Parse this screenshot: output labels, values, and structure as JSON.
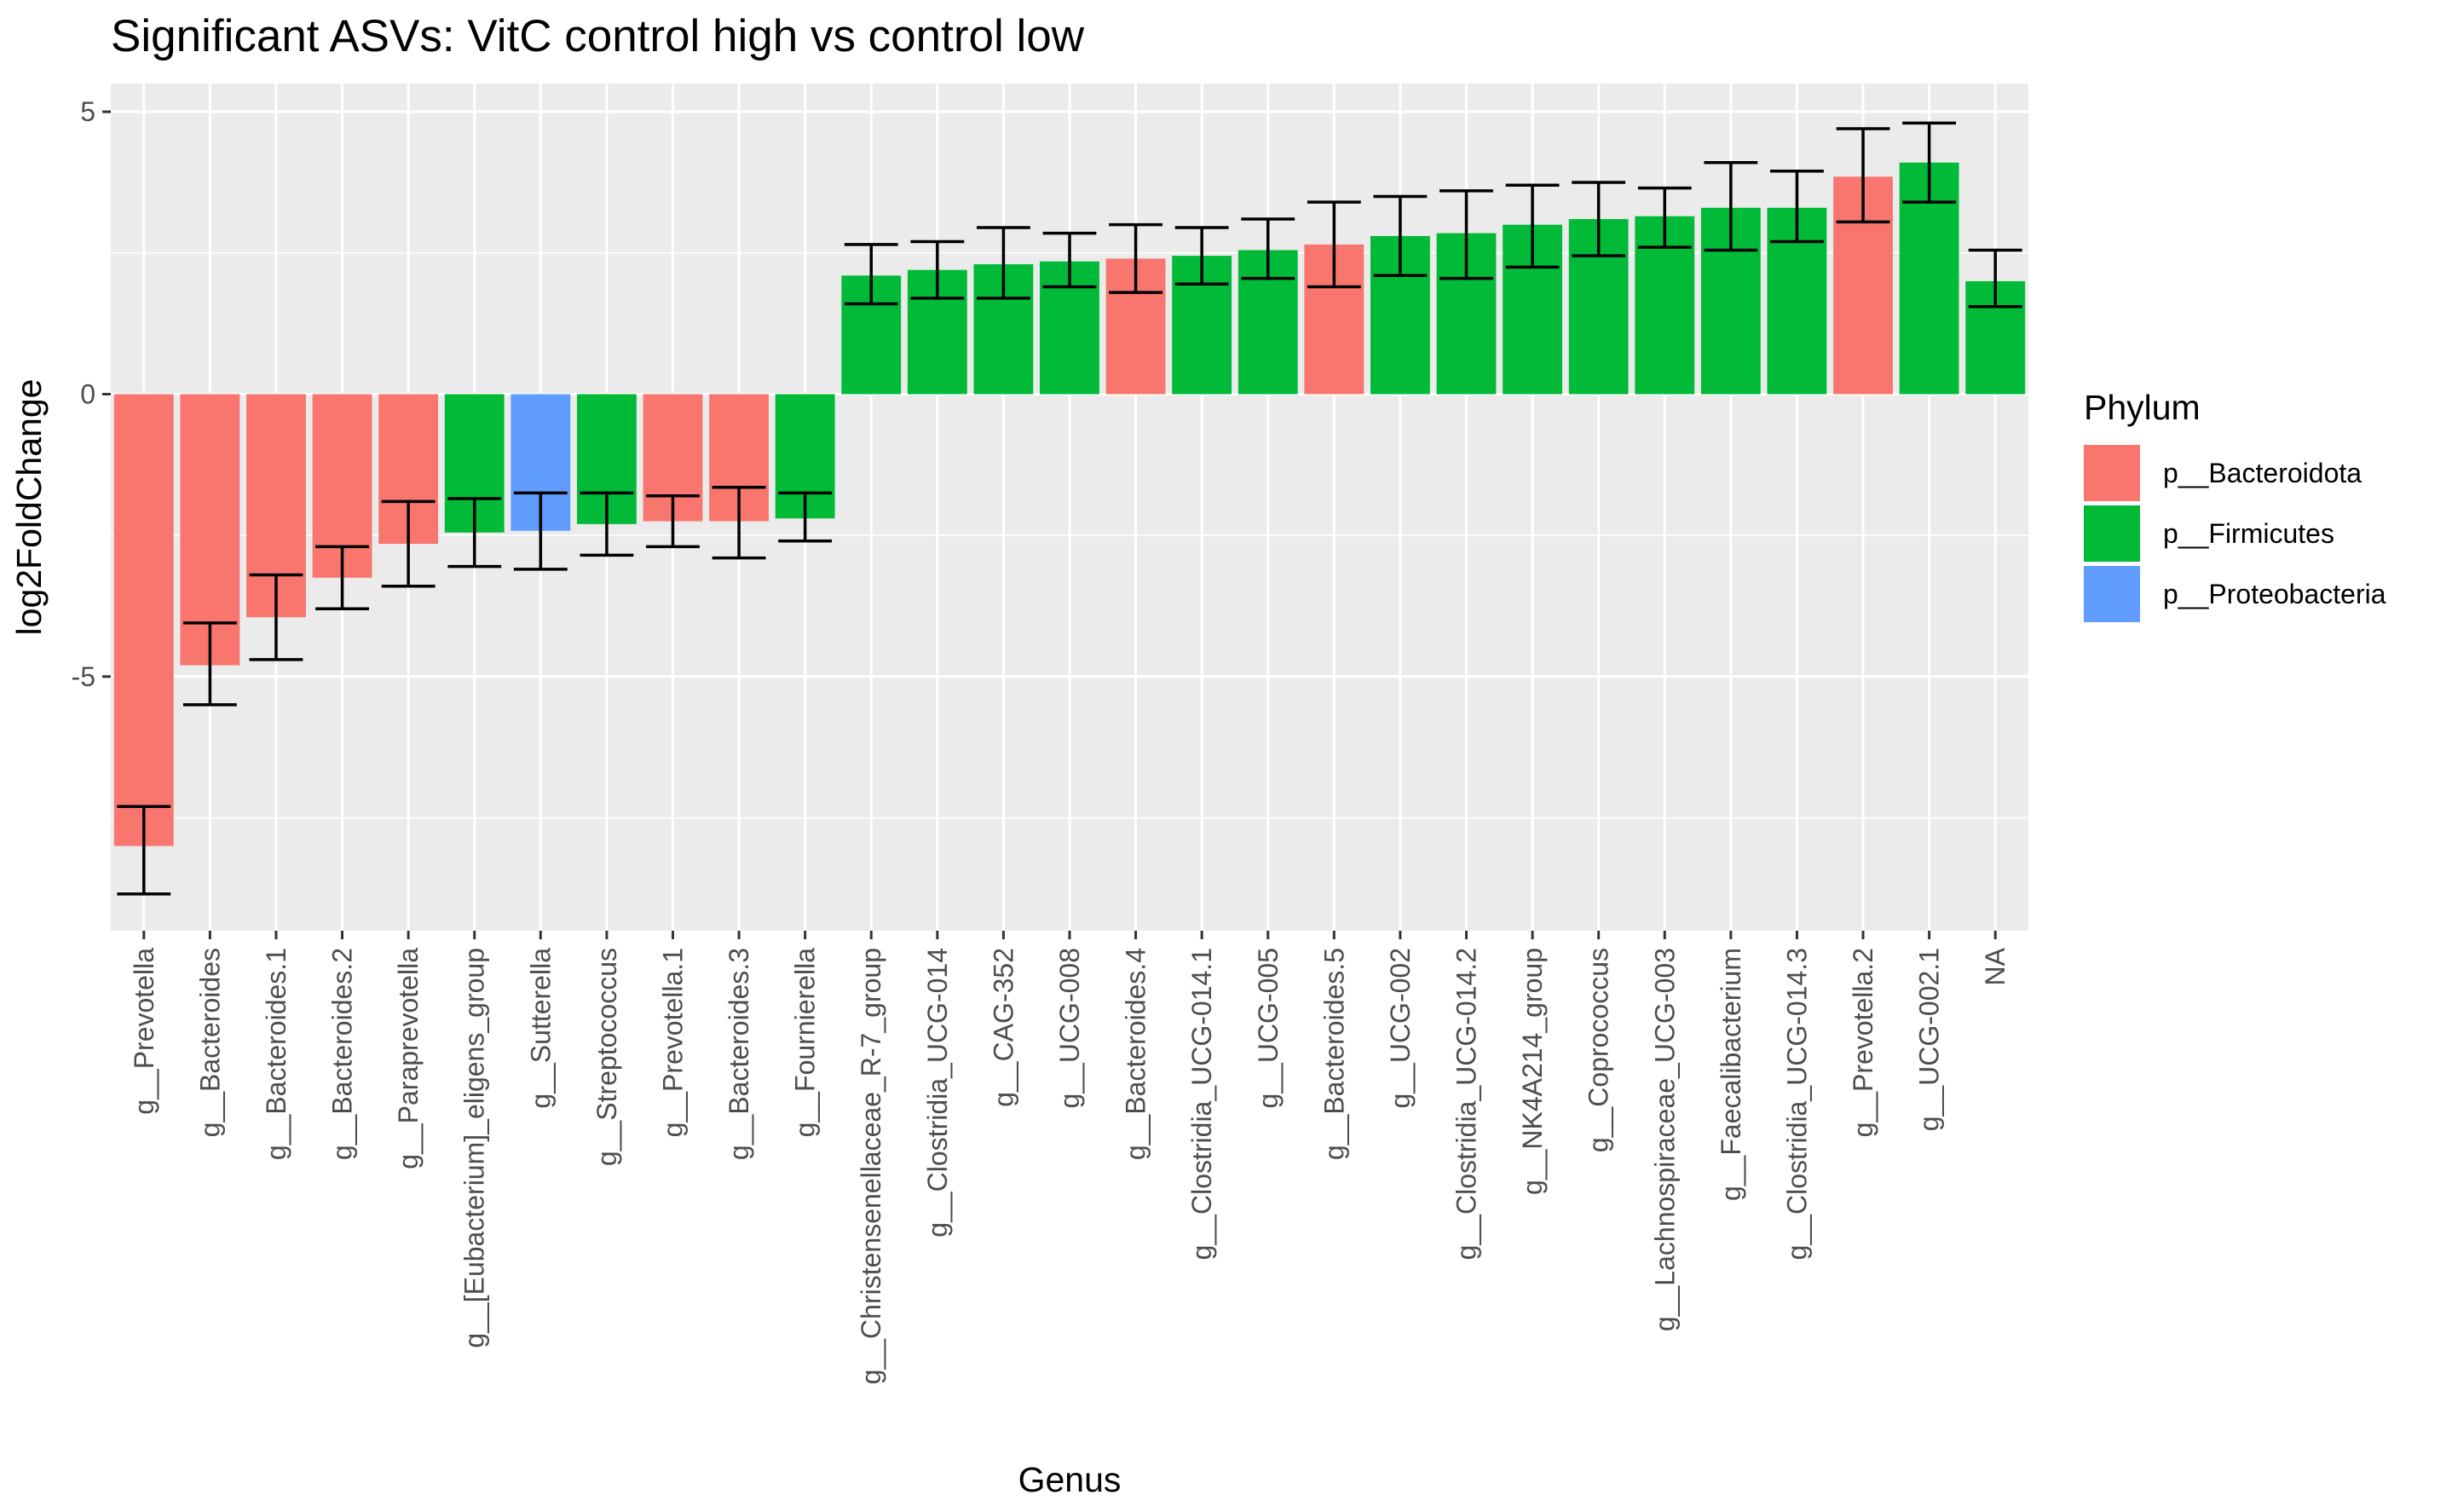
{
  "chart_data": {
    "type": "bar",
    "title": "Significant ASVs: VitC control high vs control low",
    "xlabel": "Genus",
    "ylabel": "log2FoldChange",
    "ylim": [
      -9.5,
      5.5
    ],
    "yticks": [
      -5,
      0,
      5
    ],
    "grid": true,
    "legend": {
      "title": "Phylum",
      "position": "right",
      "entries": [
        {
          "name": "p__Bacteroidota",
          "color": "#F8766D"
        },
        {
          "name": "p__Firmicutes",
          "color": "#00BA38"
        },
        {
          "name": "p__Proteobacteria",
          "color": "#619CFF"
        }
      ]
    },
    "categories": [
      "g__Prevotella",
      "g__Bacteroides",
      "g__Bacteroides.1",
      "g__Bacteroides.2",
      "g__Paraprevotella",
      "g__[Eubacterium]_eligens_group",
      "g__Sutterella",
      "g__Streptococcus",
      "g__Prevotella.1",
      "g__Bacteroides.3",
      "g__Fournierella",
      "g__Christensenellaceae_R-7_group",
      "g__Clostridia_UCG-014",
      "g__CAG-352",
      "g__UCG-008",
      "g__Bacteroides.4",
      "g__Clostridia_UCG-014.1",
      "g__UCG-005",
      "g__Bacteroides.5",
      "g__UCG-002",
      "g__Clostridia_UCG-014.2",
      "g__NK4A214_group",
      "g__Coprococcus",
      "g__Lachnospiraceae_UCG-003",
      "g__Faecalibacterium",
      "g__Clostridia_UCG-014.3",
      "g__Prevotella.2",
      "g__UCG-002.1",
      "NA"
    ],
    "values": [
      -8.0,
      -4.8,
      -3.95,
      -3.25,
      -2.65,
      -2.45,
      -2.42,
      -2.3,
      -2.25,
      -2.25,
      -2.2,
      2.1,
      2.2,
      2.3,
      2.35,
      2.4,
      2.45,
      2.55,
      2.65,
      2.8,
      2.85,
      3.0,
      3.1,
      3.15,
      3.3,
      3.3,
      3.85,
      4.1,
      2.0
    ],
    "error_lower": [
      -8.85,
      -5.5,
      -4.7,
      -3.8,
      -3.4,
      -3.05,
      -3.1,
      -2.85,
      -2.7,
      -2.9,
      -2.6,
      1.6,
      1.7,
      1.7,
      1.9,
      1.8,
      1.95,
      2.05,
      1.9,
      2.1,
      2.05,
      2.25,
      2.45,
      2.6,
      2.55,
      2.7,
      3.05,
      3.4,
      1.55
    ],
    "error_upper": [
      -7.3,
      -4.05,
      -3.2,
      -2.7,
      -1.9,
      -1.85,
      -1.75,
      -1.75,
      -1.8,
      -1.65,
      -1.75,
      2.65,
      2.7,
      2.95,
      2.85,
      3.0,
      2.95,
      3.1,
      3.4,
      3.5,
      3.6,
      3.7,
      3.75,
      3.65,
      4.1,
      3.95,
      4.7,
      4.8,
      2.55
    ],
    "phylum": [
      "p__Bacteroidota",
      "p__Bacteroidota",
      "p__Bacteroidota",
      "p__Bacteroidota",
      "p__Bacteroidota",
      "p__Firmicutes",
      "p__Proteobacteria",
      "p__Firmicutes",
      "p__Bacteroidota",
      "p__Bacteroidota",
      "p__Firmicutes",
      "p__Firmicutes",
      "p__Firmicutes",
      "p__Firmicutes",
      "p__Firmicutes",
      "p__Bacteroidota",
      "p__Firmicutes",
      "p__Firmicutes",
      "p__Bacteroidota",
      "p__Firmicutes",
      "p__Firmicutes",
      "p__Firmicutes",
      "p__Firmicutes",
      "p__Firmicutes",
      "p__Firmicutes",
      "p__Firmicutes",
      "p__Bacteroidota",
      "p__Firmicutes",
      "p__Firmicutes"
    ],
    "colors": {
      "panel_background": "#EBEBEB",
      "grid_major": "#FFFFFF",
      "error_bar": "#000000"
    }
  }
}
